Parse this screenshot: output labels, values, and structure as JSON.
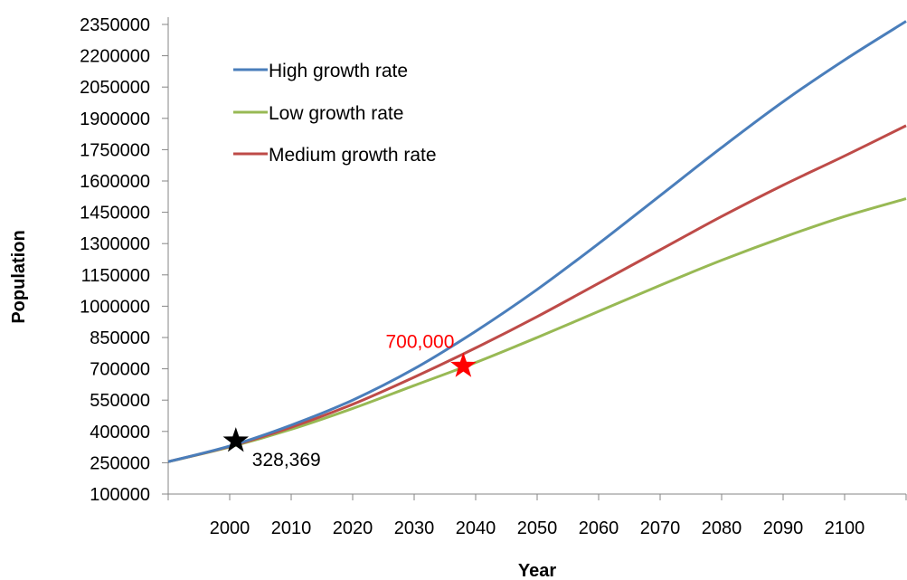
{
  "chart_data": {
    "type": "line",
    "title": "",
    "xlabel": "Year",
    "ylabel": "Population",
    "xlim": [
      1990,
      2110
    ],
    "ylim": [
      100000,
      2350000
    ],
    "x_ticks": [
      2000,
      2010,
      2020,
      2030,
      2040,
      2050,
      2060,
      2070,
      2080,
      2090,
      2100
    ],
    "y_ticks": [
      100000,
      250000,
      400000,
      550000,
      700000,
      850000,
      1000000,
      1150000,
      1300000,
      1450000,
      1600000,
      1750000,
      1900000,
      2050000,
      2200000,
      2350000
    ],
    "x_tick_labels": [
      "2000",
      "2010",
      "2020",
      "2030",
      "2040",
      "2050",
      "2060",
      "2070",
      "2080",
      "2090",
      "2100"
    ],
    "y_tick_labels": [
      "100000",
      "250000",
      "400000",
      "550000",
      "700000",
      "850000",
      "1000000",
      "1150000",
      "1300000",
      "1450000",
      "1600000",
      "1750000",
      "1900000",
      "2050000",
      "2200000",
      "2350000"
    ],
    "grid": false,
    "legend_position": "top-left",
    "x": [
      1990,
      2000,
      2010,
      2020,
      2030,
      2040,
      2050,
      2060,
      2070,
      2080,
      2090,
      2100,
      2110
    ],
    "series": [
      {
        "name": "High growth rate",
        "color": "#4a7ebb",
        "values": [
          255000,
          330000,
          430000,
          550000,
          700000,
          880000,
          1080000,
          1300000,
          1530000,
          1760000,
          1980000,
          2180000,
          2365000
        ]
      },
      {
        "name": "Low growth rate",
        "color": "#98b954",
        "values": [
          255000,
          325000,
          410000,
          510000,
          620000,
          730000,
          850000,
          975000,
          1100000,
          1220000,
          1330000,
          1430000,
          1515000
        ]
      },
      {
        "name": "Medium growth rate",
        "color": "#be4b48",
        "values": [
          255000,
          328000,
          420000,
          530000,
          660000,
          800000,
          950000,
          1110000,
          1270000,
          1430000,
          1580000,
          1720000,
          1865000
        ]
      }
    ],
    "annotations": [
      {
        "label": "328,369",
        "x": 2001,
        "y": 355000,
        "marker": "star",
        "color": "#000000",
        "label_color": "#000000",
        "label_position": "below-right"
      },
      {
        "label": "700,000",
        "x": 2038,
        "y": 713000,
        "marker": "star",
        "color": "#ff0000",
        "label_color": "#ff0000",
        "label_position": "above-left"
      }
    ],
    "axis_color": "#868686",
    "tick_color": "#868686"
  }
}
